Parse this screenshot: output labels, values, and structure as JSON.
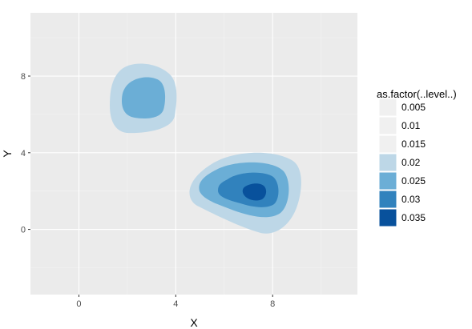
{
  "chart_data": {
    "type": "contour",
    "title": "",
    "xlabel": "X",
    "ylabel": "Y",
    "xlim": [
      -2,
      11.5
    ],
    "ylim": [
      -3.4,
      11.3
    ],
    "x_ticks": [
      0,
      4,
      8
    ],
    "y_ticks": [
      0,
      4,
      8
    ],
    "grid": true,
    "legend": {
      "title": "as.factor(..level..)",
      "position": "right",
      "entries": [
        {
          "label": "0.005",
          "color": "#f0f0f0"
        },
        {
          "label": "0.01",
          "color": "#f0f0f0"
        },
        {
          "label": "0.015",
          "color": "#f0f0f0"
        },
        {
          "label": "0.02",
          "color": "#bdd7e7"
        },
        {
          "label": "0.025",
          "color": "#6baed6"
        },
        {
          "label": "0.03",
          "color": "#3182bd"
        },
        {
          "label": "0.035",
          "color": "#08519c"
        }
      ]
    },
    "regions": [
      {
        "level": "0.02",
        "center": [
          2.9,
          6.8
        ]
      },
      {
        "level": "0.025",
        "center": [
          2.8,
          6.9
        ]
      },
      {
        "level": "0.02",
        "center": [
          6.9,
          1.8
        ]
      },
      {
        "level": "0.025",
        "center": [
          6.9,
          1.9
        ]
      },
      {
        "level": "0.03",
        "center": [
          7.2,
          2.0
        ]
      },
      {
        "level": "0.035",
        "center": [
          7.4,
          2.1
        ]
      }
    ]
  },
  "colors": {
    "panel_background": "#ebebeb",
    "grid_major": "#ffffff",
    "grid_minor": "#f5f5f5"
  }
}
